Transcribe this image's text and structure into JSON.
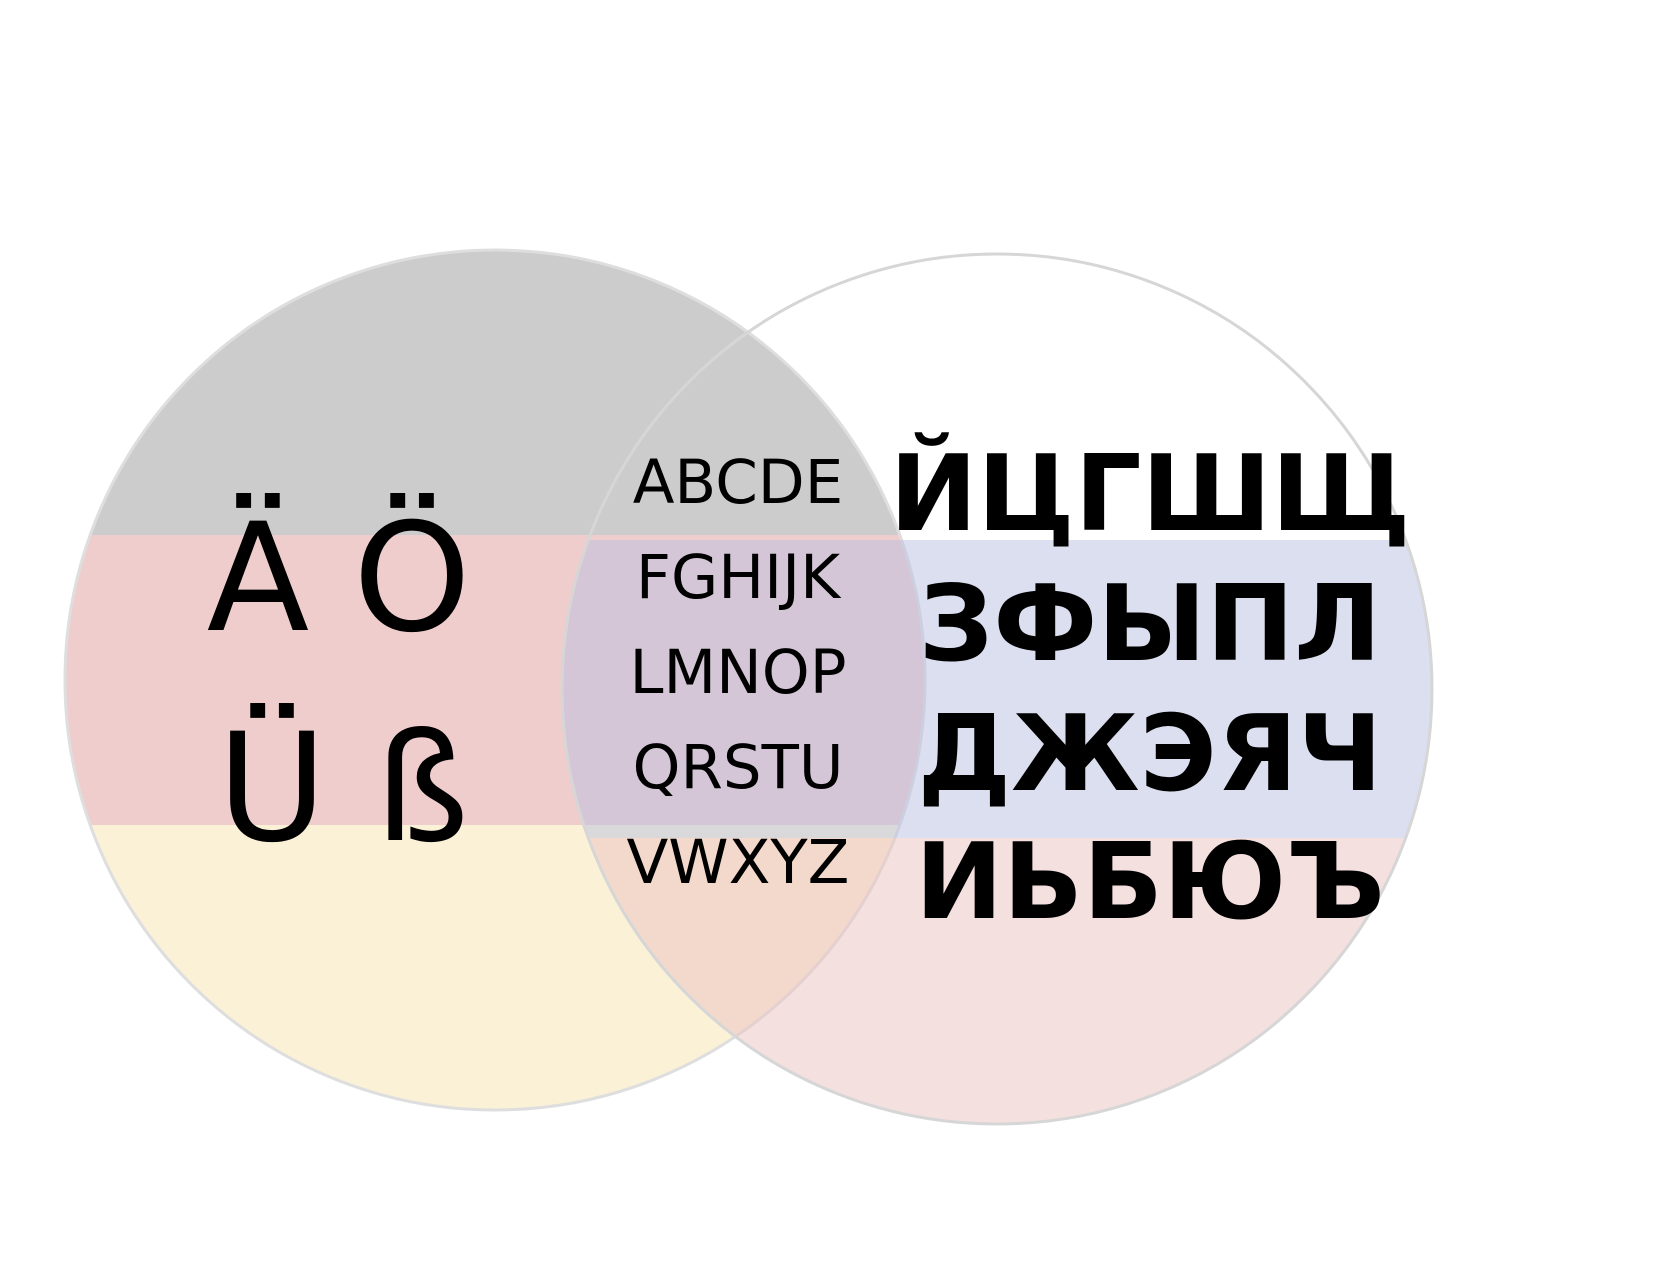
{
  "diagram": {
    "type": "venn",
    "left_set": {
      "flag_colors": [
        "#c8c8c8",
        "#efc9c9",
        "#faf0d4"
      ],
      "letters": [
        [
          "Ä",
          "Ö"
        ],
        [
          "Ü",
          "ß"
        ]
      ]
    },
    "right_set": {
      "flag_colors": [
        "#ffffff",
        "#b7bfe0",
        "#ecc2c2"
      ],
      "letters": [
        "ЙЦГШЩ",
        "ЗФЫПЛ",
        "ДЖЭЯЧ",
        "ИЬБЮЪ"
      ]
    },
    "intersection": {
      "letters": [
        "ABCDE",
        "FGHIJK",
        "LMNOP",
        "QRSTU",
        "VWXYZ"
      ]
    }
  }
}
